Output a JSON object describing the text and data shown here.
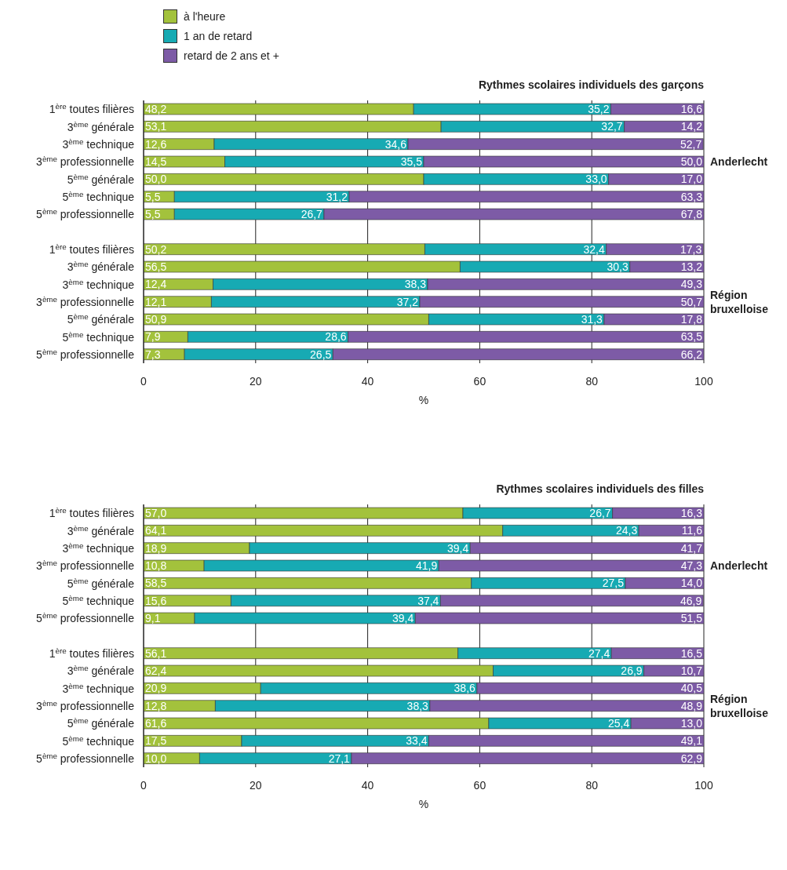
{
  "chart_data": [
    {
      "type": "bar",
      "orientation": "horizontal",
      "stacked": true,
      "title": "Rythmes scolaires individuels des garçons",
      "xlabel": "%",
      "xlim": [
        0,
        100
      ],
      "xticks": [
        0,
        20,
        40,
        60,
        80,
        100
      ],
      "grid": "x",
      "legend": "top left",
      "categories": [
        "1$^{ère}$ toutes filières",
        "3$^{ème}$ générale",
        "3$^{ème}$ technique",
        "3$^{ème}$ professionnelle",
        "5$^{ème}$ générale",
        "5$^{ème}$ technique",
        "5$^{ème}$ professionnelle",
        null,
        "1$^{ère}$ toutes filières",
        "3$^{ème}$ générale",
        "3$^{ème}$ technique",
        "3$^{ème}$ professionnelle",
        "5$^{ème}$ générale",
        "5$^{ème}$ technique",
        "5$^{ème}$ professionnelle"
      ],
      "series": [
        {
          "name": "à l'heure",
          "color": "#a3c23c",
          "values": [
            48.2,
            53.1,
            12.6,
            14.5,
            50.0,
            5.5,
            5.5,
            null,
            50.2,
            56.5,
            12.4,
            12.1,
            50.9,
            7.9,
            7.3
          ],
          "value_labels": [
            "48,2",
            "53,1",
            "12,6",
            "14,5",
            "50,0",
            "5,5",
            "5,5",
            null,
            "50,2",
            "56,5",
            "12,4",
            "12,1",
            "50,9",
            "7,9",
            "7,3"
          ]
        },
        {
          "name": "1 an de retard",
          "color": "#17aab3",
          "values": [
            35.2,
            32.7,
            34.6,
            35.5,
            33.0,
            31.2,
            26.7,
            null,
            32.4,
            30.3,
            38.3,
            37.2,
            31.3,
            28.6,
            26.5
          ],
          "value_labels": [
            "35,2",
            "32,7",
            "34,6",
            "35,5",
            "33,0",
            "31,2",
            "26,7",
            null,
            "32,4",
            "30,3",
            "38,3",
            "37,2",
            "31,3",
            "28,6",
            "26,5"
          ]
        },
        {
          "name": "retard de 2 ans et +",
          "color": "#7d5ba6",
          "values": [
            16.6,
            14.2,
            52.7,
            50.0,
            17.0,
            63.3,
            67.8,
            null,
            17.3,
            13.2,
            49.3,
            50.7,
            17.8,
            63.5,
            66.2
          ],
          "value_labels": [
            "16,6",
            "14,2",
            "52,7",
            "50,0",
            "17,0",
            "63,3",
            "67,8",
            null,
            "17,3",
            "13,2",
            "49,3",
            "50,7",
            "17,8",
            "63,5",
            "66,2"
          ]
        }
      ],
      "annotations": [
        "Anderlecht",
        "Région bruxelloise"
      ]
    },
    {
      "type": "bar",
      "orientation": "horizontal",
      "stacked": true,
      "title": "Rythmes scolaires individuels des filles",
      "xlabel": "%",
      "xlim": [
        0,
        100
      ],
      "xticks": [
        0,
        20,
        40,
        60,
        80,
        100
      ],
      "grid": "x",
      "categories": [
        "1$^{ère}$ toutes filières",
        "3$^{ème}$ générale",
        "3$^{ème}$ technique",
        "3$^{ème}$ professionnelle",
        "5$^{ème}$ générale",
        "5$^{ème}$ technique",
        "5$^{ème}$ professionnelle",
        null,
        "1$^{ère}$ toutes filières",
        "3$^{ème}$ générale",
        "3$^{ème}$ technique",
        "3$^{ème}$ professionnelle",
        "5$^{ème}$ générale",
        "5$^{ème}$ technique",
        "5$^{ème}$ professionnelle"
      ],
      "series": [
        {
          "color": "#a3c23c",
          "values": [
            57.0,
            64.1,
            18.9,
            10.8,
            58.5,
            15.6,
            9.1,
            null,
            56.1,
            62.4,
            20.9,
            12.8,
            61.6,
            17.5,
            10.0
          ],
          "value_labels": [
            "57,0",
            "64,1",
            "18,9",
            "10,8",
            "58,5",
            "15,6",
            "9,1",
            null,
            "56,1",
            "62,4",
            "20,9",
            "12,8",
            "61,6",
            "17,5",
            "10,0"
          ]
        },
        {
          "color": "#17aab3",
          "values": [
            26.7,
            24.3,
            39.4,
            41.9,
            27.5,
            37.4,
            39.4,
            null,
            27.4,
            26.9,
            38.6,
            38.3,
            25.4,
            33.4,
            27.1
          ],
          "value_labels": [
            "26,7",
            "24,3",
            "39,4",
            "41,9",
            "27,5",
            "37,4",
            "39,4",
            null,
            "27,4",
            "26,9",
            "38,6",
            "38,3",
            "25,4",
            "33,4",
            "27,1"
          ]
        },
        {
          "color": "#7d5ba6",
          "values": [
            16.3,
            11.6,
            41.7,
            47.3,
            14.0,
            46.9,
            51.5,
            null,
            16.5,
            10.7,
            40.5,
            48.9,
            13.0,
            49.1,
            62.9
          ],
          "value_labels": [
            "16,3",
            "11,6",
            "41,7",
            "47,3",
            "14,0",
            "46,9",
            "51,5",
            null,
            "16,5",
            "10,7",
            "40,5",
            "48,9",
            "13,0",
            "49,1",
            "62,9"
          ]
        }
      ],
      "annotations": [
        "Anderlecht",
        "Région bruxelloise"
      ]
    }
  ]
}
